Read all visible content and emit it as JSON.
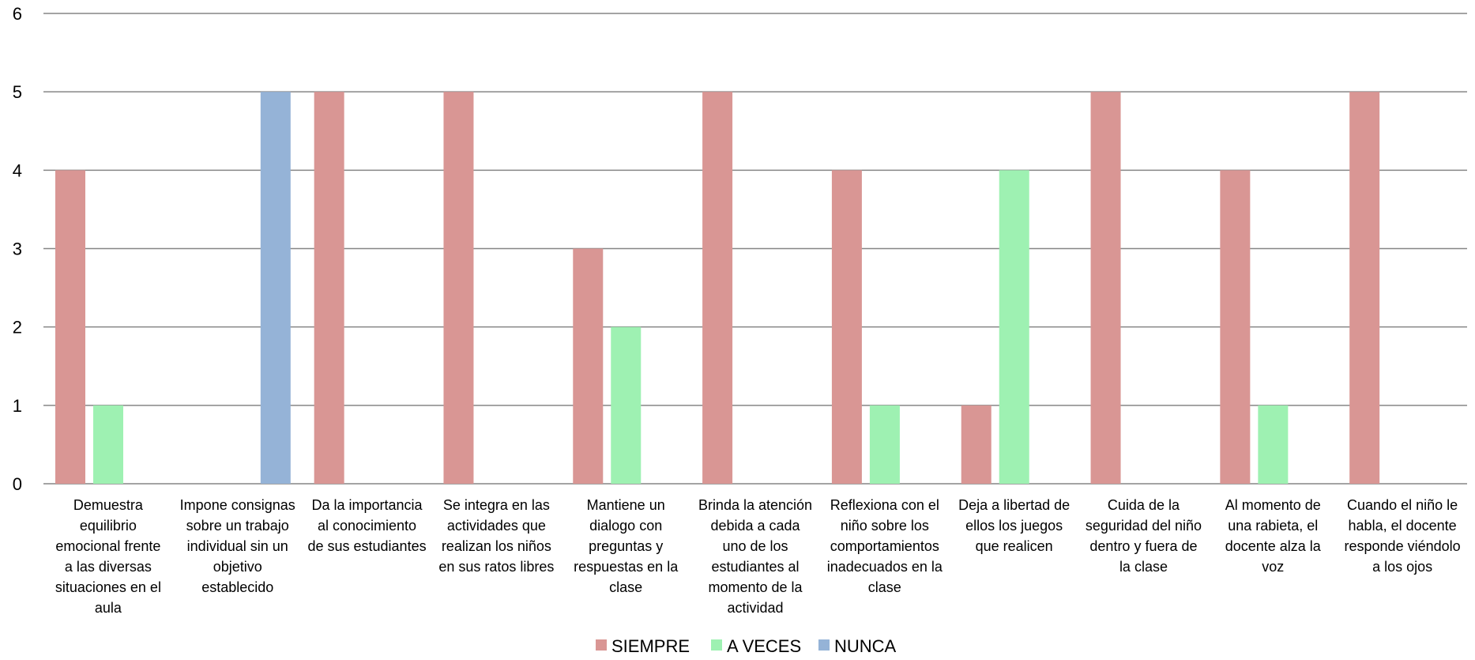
{
  "chart_data": {
    "type": "bar",
    "title": "",
    "xlabel": "",
    "ylabel": "",
    "ylim": [
      0,
      6
    ],
    "yticks": [
      "0",
      "1",
      "2",
      "3",
      "4",
      "5",
      "6"
    ],
    "grid": true,
    "legend_position": "bottom",
    "categories": [
      "Demuestra equilibrio emocional frente a las diversas situaciones en el aula",
      "Impone consignas sobre un trabajo individual sin un objetivo establecido",
      "Da la importancia al conocimiento de sus estudiantes",
      "Se integra en las actividades que realizan los niños en sus ratos libres",
      "Mantiene un dialogo con preguntas y respuestas en la clase",
      "Brinda la atención debida  a cada uno de los estudiantes al momento de la actividad",
      "Reflexiona con el niño sobre los comportamientos inadecuados en la clase",
      "Deja a libertad de ellos los juegos que realicen",
      "Cuida de la seguridad del niño dentro y fuera de la clase",
      "Al momento de una rabieta, el docente alza la voz",
      "Cuando el niño le habla, el docente responde viéndolo a los ojos"
    ],
    "category_lines": [
      [
        "Demuestra",
        "equilibrio",
        "emocional frente",
        "a las diversas",
        "situaciones en el",
        "aula"
      ],
      [
        "Impone consignas",
        "sobre un trabajo",
        "individual sin un",
        "objetivo",
        "establecido"
      ],
      [
        "Da la importancia",
        "al conocimiento",
        "de sus estudiantes"
      ],
      [
        "Se integra en las",
        "actividades que",
        "realizan los niños",
        "en sus ratos libres"
      ],
      [
        "Mantiene un",
        "dialogo con",
        "preguntas y",
        "respuestas en la",
        "clase"
      ],
      [
        "Brinda la atención",
        "debida  a cada",
        "uno de los",
        "estudiantes al",
        "momento de la",
        "actividad"
      ],
      [
        "Reflexiona con el",
        "niño sobre los",
        "comportamientos",
        "inadecuados en la",
        "clase"
      ],
      [
        "Deja a libertad de",
        "ellos los juegos",
        "que realicen"
      ],
      [
        "Cuida de la",
        "seguridad del niño",
        "dentro y fuera de",
        "la clase"
      ],
      [
        "Al momento de",
        "una rabieta, el",
        "docente alza la",
        "voz"
      ],
      [
        "Cuando el niño le",
        "habla, el docente",
        "responde viéndolo",
        "a los ojos"
      ]
    ],
    "series": [
      {
        "name": "SIEMPRE",
        "color": "#d99694",
        "values": [
          4,
          0,
          5,
          5,
          3,
          5,
          4,
          1,
          5,
          4,
          5
        ]
      },
      {
        "name": "A VECES",
        "color": "#9ef1b2",
        "values": [
          1,
          0,
          0,
          0,
          2,
          0,
          1,
          4,
          0,
          1,
          0
        ]
      },
      {
        "name": "NUNCA",
        "color": "#95b3d7",
        "values": [
          0,
          5,
          0,
          0,
          0,
          0,
          0,
          0,
          0,
          0,
          0
        ]
      }
    ]
  }
}
